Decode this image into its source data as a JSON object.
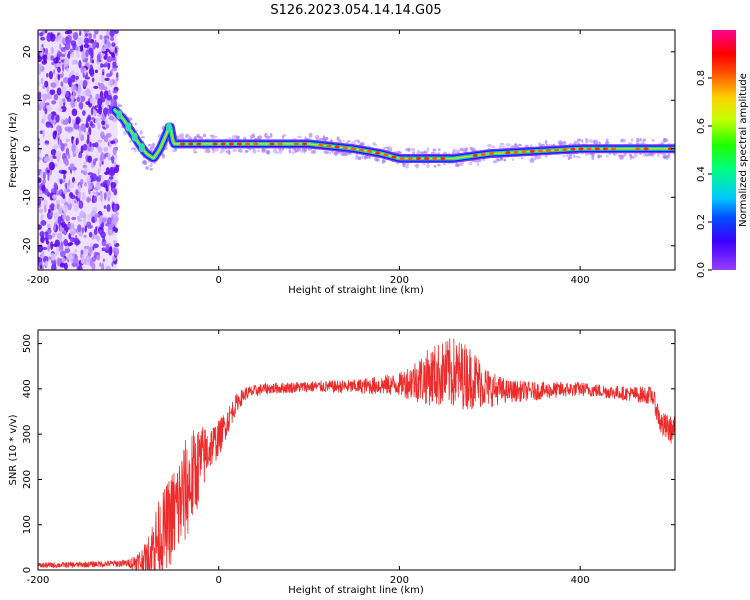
{
  "title": "S126.2023.054.14.14.G05",
  "chart_data": [
    {
      "type": "heatmap",
      "xlabel": "Height of straight line (km)",
      "ylabel": "Frequency (Hz)",
      "xlim": [
        -200,
        505
      ],
      "ylim": [
        -25,
        24.5
      ],
      "x_ticks": [
        -200,
        0,
        200,
        400
      ],
      "y_ticks": [
        -20,
        -10,
        0,
        10,
        20
      ],
      "colorbar": {
        "label": "Normalized spectral amplitude",
        "range": [
          0,
          1
        ],
        "ticks": [
          "0.0",
          "0.2",
          "0.4",
          "0.6",
          "0.8"
        ],
        "tick_values": [
          0.0,
          0.2,
          0.4,
          0.6,
          0.8
        ]
      },
      "ridge": {
        "x_km": [
          -115,
          -105,
          -95,
          -88,
          -80,
          -72,
          -65,
          -58,
          -54,
          -50,
          -30,
          0,
          50,
          100,
          150,
          180,
          200,
          230,
          260,
          300,
          400,
          450,
          505
        ],
        "freq_hz": [
          8,
          6,
          3,
          1,
          -1,
          -2,
          0,
          3,
          5,
          1,
          1,
          1,
          1,
          1,
          0,
          -1,
          -2,
          -2,
          -2,
          -1,
          0,
          0,
          0
        ]
      },
      "noise_region_km": [
        -200,
        -112
      ],
      "grid": false
    },
    {
      "type": "line",
      "xlabel": "Height of straight line (km)",
      "ylabel": "SNR (10 * v/v)",
      "xlim": [
        -200,
        505
      ],
      "ylim": [
        0,
        530
      ],
      "x_ticks": [
        -200,
        0,
        200,
        400
      ],
      "y_ticks": [
        0,
        100,
        200,
        300,
        400,
        500
      ],
      "series": [
        {
          "color": "#ee2a2a",
          "x": [
            -200,
            -150,
            -100,
            -80,
            -70,
            -60,
            -50,
            -40,
            -30,
            -20,
            -10,
            0,
            10,
            20,
            30,
            50,
            100,
            150,
            200,
            220,
            240,
            260,
            280,
            300,
            320,
            350,
            400,
            450,
            480,
            490,
            500,
            505
          ],
          "y": [
            10,
            12,
            15,
            20,
            60,
            90,
            120,
            160,
            200,
            240,
            270,
            290,
            330,
            370,
            390,
            400,
            405,
            405,
            410,
            420,
            430,
            435,
            425,
            400,
            395,
            395,
            400,
            390,
            385,
            320,
            310,
            310
          ],
          "amplitude": [
            6,
            6,
            8,
            40,
            80,
            90,
            110,
            120,
            110,
            80,
            50,
            40,
            30,
            20,
            15,
            12,
            12,
            15,
            25,
            50,
            70,
            80,
            70,
            40,
            25,
            20,
            15,
            15,
            20,
            30,
            30,
            30
          ]
        }
      ],
      "grid": false
    }
  ]
}
